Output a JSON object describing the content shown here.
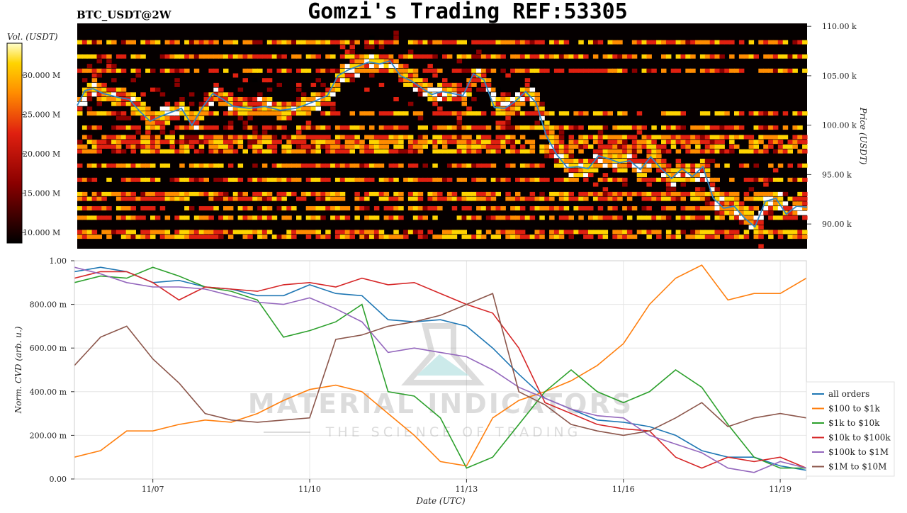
{
  "title": "Gomzi's Trading REF:53305",
  "symbol_label": "BTC_USDT@2W",
  "colors": {
    "heatmap_bg": "#050000",
    "price_line": "#2f86c6",
    "grid": "#e6e6e6"
  },
  "watermark": {
    "line1": "MATERIAL INDICATORS",
    "line2": "THE SCIENCE OF TRADING"
  },
  "colorbar": {
    "label": "Vol. (USDT)",
    "ticks": [
      "30.000 M",
      "25.000 M",
      "20.000 M",
      "15.000 M",
      "10.000 M"
    ]
  },
  "chart_data": [
    {
      "type": "heatmap",
      "title": "BTC_USDT@2W",
      "ylabel": "Price (USDT)",
      "y_ticks": [
        "110.00 k",
        "105.00 k",
        "100.00 k",
        "95.00 k",
        "90.00 k"
      ],
      "ylim": [
        87500,
        110300
      ],
      "colorscale": [
        "#000000",
        "#8b0000",
        "#e02010",
        "#ff8c00",
        "#ffd400",
        "#ffffff"
      ],
      "x_range": [
        "2024-11-05",
        "2024-11-19 12:00"
      ],
      "price_series": {
        "name": "Price",
        "x": [
          0,
          0.15,
          0.3,
          0.5,
          0.8,
          1.0,
          1.2,
          1.4,
          1.6,
          1.8,
          2.0,
          2.2,
          2.4,
          2.6,
          2.8,
          3.0,
          3.3,
          3.6,
          3.9,
          4.2,
          4.5,
          4.8,
          5.0,
          5.2,
          5.4,
          5.6,
          5.8,
          6.0,
          6.2,
          6.4,
          6.6,
          6.8,
          7.0,
          7.2,
          7.4,
          7.6,
          7.8,
          8.0,
          8.2,
          8.4,
          8.6,
          8.8,
          9.0,
          9.2,
          9.4,
          9.6,
          9.8,
          10.0,
          10.2,
          10.4,
          10.6,
          10.8,
          11.0,
          11.2,
          11.4,
          11.6,
          11.8,
          12.0,
          12.2,
          12.4,
          12.6,
          12.8,
          13.0,
          13.2,
          13.4,
          13.6,
          13.8,
          14.0
        ],
        "values": [
          102000,
          103500,
          103700,
          103200,
          102800,
          102600,
          101400,
          100400,
          100900,
          101300,
          101700,
          100000,
          101800,
          103200,
          102600,
          101900,
          101700,
          101900,
          101500,
          101700,
          102300,
          103000,
          105000,
          105600,
          106000,
          106400,
          106200,
          106500,
          105000,
          104500,
          103800,
          103100,
          103400,
          103200,
          103000,
          105200,
          104600,
          101800,
          101700,
          102400,
          103400,
          102300,
          98900,
          97000,
          95700,
          95800,
          95600,
          96900,
          96600,
          96200,
          96400,
          95500,
          96800,
          95600,
          94600,
          95600,
          94800,
          95800,
          92600,
          91600,
          91800,
          90600,
          89700,
          92300,
          92600,
          91000,
          91800,
          91700
        ]
      }
    },
    {
      "type": "line",
      "xlabel": "Date (UTC)",
      "ylabel": "Norm. CVD (arb. u.)",
      "ylim": [
        0,
        1
      ],
      "y_ticks": [
        "1.00",
        "800.00 m",
        "600.00 m",
        "400.00 m",
        "200.00 m",
        "0.00"
      ],
      "x_ticks": [
        {
          "label": "11/07",
          "x": 1.5
        },
        {
          "label": "11/10",
          "x": 4.5
        },
        {
          "label": "11/13",
          "x": 7.5
        },
        {
          "label": "11/16",
          "x": 10.5
        },
        {
          "label": "11/19",
          "x": 13.5
        }
      ],
      "x": [
        0,
        0.5,
        1.0,
        1.5,
        2.0,
        2.5,
        3.0,
        3.5,
        4.0,
        4.5,
        5.0,
        5.5,
        6.0,
        6.5,
        7.0,
        7.5,
        8.0,
        8.5,
        9.0,
        9.5,
        10.0,
        10.5,
        11.0,
        11.5,
        12.0,
        12.5,
        13.0,
        13.5,
        14.0
      ],
      "series": [
        {
          "name": "all orders",
          "color": "#1f77b4",
          "values": [
            0.95,
            0.97,
            0.95,
            0.9,
            0.91,
            0.88,
            0.87,
            0.84,
            0.84,
            0.89,
            0.85,
            0.84,
            0.73,
            0.72,
            0.73,
            0.7,
            0.6,
            0.48,
            0.37,
            0.32,
            0.27,
            0.26,
            0.24,
            0.2,
            0.13,
            0.1,
            0.1,
            0.06,
            0.04
          ]
        },
        {
          "name": "$100 to $1k",
          "color": "#ff7f0e",
          "values": [
            0.1,
            0.13,
            0.22,
            0.22,
            0.25,
            0.27,
            0.26,
            0.3,
            0.36,
            0.41,
            0.43,
            0.4,
            0.3,
            0.2,
            0.08,
            0.06,
            0.28,
            0.36,
            0.4,
            0.45,
            0.52,
            0.62,
            0.8,
            0.92,
            0.98,
            0.82,
            0.85,
            0.85,
            0.92
          ]
        },
        {
          "name": "$1k to $10k",
          "color": "#2ca02c",
          "values": [
            0.9,
            0.93,
            0.92,
            0.97,
            0.93,
            0.88,
            0.86,
            0.82,
            0.65,
            0.68,
            0.72,
            0.8,
            0.4,
            0.38,
            0.28,
            0.05,
            0.1,
            0.25,
            0.4,
            0.5,
            0.4,
            0.35,
            0.4,
            0.5,
            0.42,
            0.25,
            0.1,
            0.05,
            0.05
          ]
        },
        {
          "name": "$10k to $100k",
          "color": "#d62728",
          "values": [
            0.92,
            0.95,
            0.95,
            0.9,
            0.82,
            0.88,
            0.87,
            0.86,
            0.89,
            0.9,
            0.88,
            0.92,
            0.89,
            0.9,
            0.85,
            0.8,
            0.76,
            0.6,
            0.35,
            0.3,
            0.25,
            0.23,
            0.22,
            0.1,
            0.05,
            0.1,
            0.08,
            0.1,
            0.05
          ]
        },
        {
          "name": "$100k to $1M",
          "color": "#9467bd",
          "values": [
            0.97,
            0.94,
            0.9,
            0.88,
            0.88,
            0.87,
            0.84,
            0.81,
            0.8,
            0.83,
            0.78,
            0.72,
            0.58,
            0.6,
            0.58,
            0.56,
            0.5,
            0.42,
            0.37,
            0.32,
            0.29,
            0.28,
            0.2,
            0.16,
            0.12,
            0.05,
            0.03,
            0.08,
            0.05
          ]
        },
        {
          "name": "$1M to $10M",
          "color": "#8c564b",
          "values": [
            0.52,
            0.65,
            0.7,
            0.55,
            0.44,
            0.3,
            0.27,
            0.26,
            0.27,
            0.28,
            0.64,
            0.66,
            0.7,
            0.72,
            0.75,
            0.8,
            0.85,
            0.4,
            0.34,
            0.25,
            0.22,
            0.2,
            0.22,
            0.28,
            0.35,
            0.24,
            0.28,
            0.3,
            0.28
          ]
        }
      ]
    }
  ]
}
